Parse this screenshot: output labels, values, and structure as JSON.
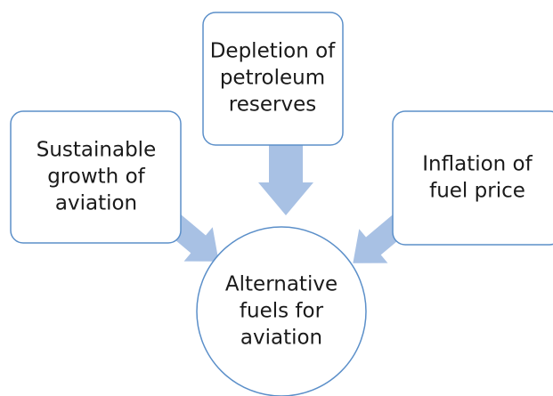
{
  "nodes": [
    {
      "lines": [
        "Depletion of",
        "petroleum",
        "reserves"
      ]
    },
    {
      "lines": [
        "Sustainable",
        "growth of",
        "aviation"
      ]
    },
    {
      "lines": [
        "Inflation of",
        "fuel price"
      ]
    },
    {
      "lines": [
        "Alternative",
        "fuels for",
        "aviation"
      ]
    }
  ]
}
